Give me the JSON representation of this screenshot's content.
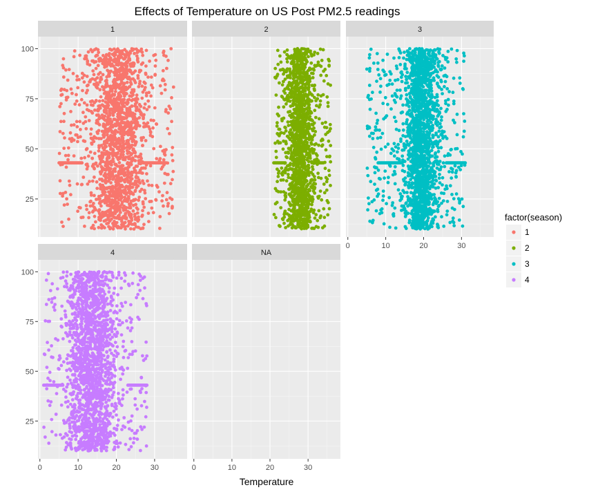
{
  "chart_data": {
    "type": "scatter",
    "title": "Effects of Temperature on US Post PM2.5 readings",
    "xlabel": "Temperature",
    "ylabel": "",
    "xlim": [
      -0.5,
      38.5
    ],
    "ylim": [
      6,
      106
    ],
    "x_ticks": [
      0,
      10,
      20,
      30
    ],
    "y_ticks": [
      25,
      50,
      75,
      100
    ],
    "grid": true,
    "facet_by": "season",
    "legend": {
      "title": "factor(season)",
      "placement": "right",
      "entries": [
        "1",
        "2",
        "3",
        "4"
      ]
    },
    "panels": [
      {
        "label": "1",
        "series": "1",
        "color": "#F8766D",
        "x_range": [
          5,
          35
        ],
        "core_x_range": [
          10,
          31
        ],
        "y_range": [
          10,
          100
        ],
        "point_count": 1800,
        "features": [
          {
            "kind": "streak",
            "x_range": [
              5,
              11
            ],
            "y": 43
          },
          {
            "kind": "streak",
            "x_range": [
              27,
              33
            ],
            "y": 43
          }
        ]
      },
      {
        "label": "2",
        "series": "2",
        "color": "#7CAE00",
        "x_range": [
          21,
          36
        ],
        "core_x_range": [
          23,
          33
        ],
        "y_range": [
          10,
          100
        ],
        "point_count": 1500,
        "features": [
          {
            "kind": "streak",
            "x_range": [
              21,
              24
            ],
            "y": 43
          },
          {
            "kind": "streak",
            "x_range": [
              31,
              34
            ],
            "y": 43
          }
        ]
      },
      {
        "label": "3",
        "series": "3",
        "color": "#00BFC4",
        "x_range": [
          5,
          31
        ],
        "core_x_range": [
          13,
          26
        ],
        "y_range": [
          10,
          100
        ],
        "point_count": 1900,
        "features": [
          {
            "kind": "streak",
            "x_range": [
              8,
              14
            ],
            "y": 43
          },
          {
            "kind": "streak",
            "x_range": [
              26,
              31
            ],
            "y": 43
          }
        ]
      },
      {
        "label": "4",
        "series": "4",
        "color": "#C77CFF",
        "x_range": [
          1,
          28
        ],
        "core_x_range": [
          5,
          22
        ],
        "y_range": [
          10,
          100
        ],
        "point_count": 1900,
        "features": [
          {
            "kind": "streak",
            "x_range": [
              1,
              6
            ],
            "y": 43
          },
          {
            "kind": "streak",
            "x_range": [
              23,
              28
            ],
            "y": 43
          }
        ]
      },
      {
        "label": "NA",
        "series": null,
        "color": null,
        "point_count": 0
      }
    ]
  }
}
